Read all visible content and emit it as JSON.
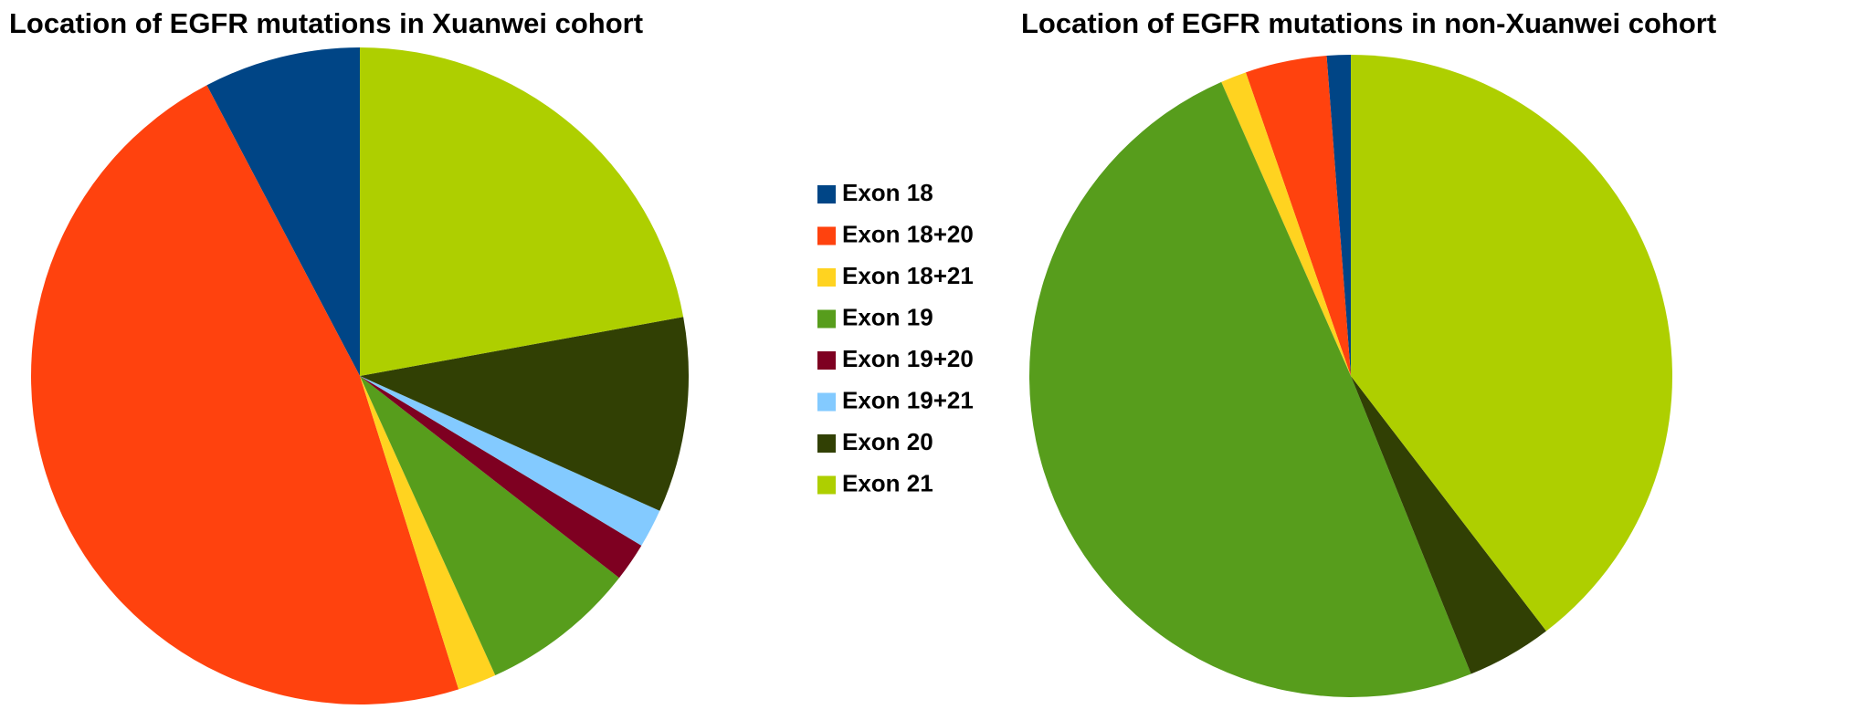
{
  "chart_data": [
    {
      "type": "pie",
      "title": "Location of EGFR mutations in Xuanwei cohort",
      "categories": [
        "Exon 18",
        "Exon 18+20",
        "Exon 18+21",
        "Exon 19",
        "Exon 19+20",
        "Exon 19+21",
        "Exon 20",
        "Exon 21"
      ],
      "values": [
        7.7,
        47.1,
        1.9,
        7.7,
        1.9,
        1.9,
        9.6,
        22.1
      ],
      "colors": [
        "#004586",
        "#ff420e",
        "#ffd320",
        "#579d1c",
        "#7e0021",
        "#83caff",
        "#314004",
        "#aecf00"
      ]
    },
    {
      "type": "pie",
      "title": "Location of EGFR mutations in non-Xuanwei cohort",
      "categories": [
        "Exon 18",
        "Exon 18+20",
        "Exon 18+21",
        "Exon 19",
        "Exon 19+20",
        "Exon 19+21",
        "Exon 20",
        "Exon 21"
      ],
      "values": [
        1.2,
        4.1,
        1.3,
        49.5,
        0,
        0,
        4.3,
        39.6
      ],
      "colors": [
        "#004586",
        "#ff420e",
        "#ffd320",
        "#579d1c",
        "#7e0021",
        "#83caff",
        "#314004",
        "#aecf00"
      ]
    }
  ]
}
